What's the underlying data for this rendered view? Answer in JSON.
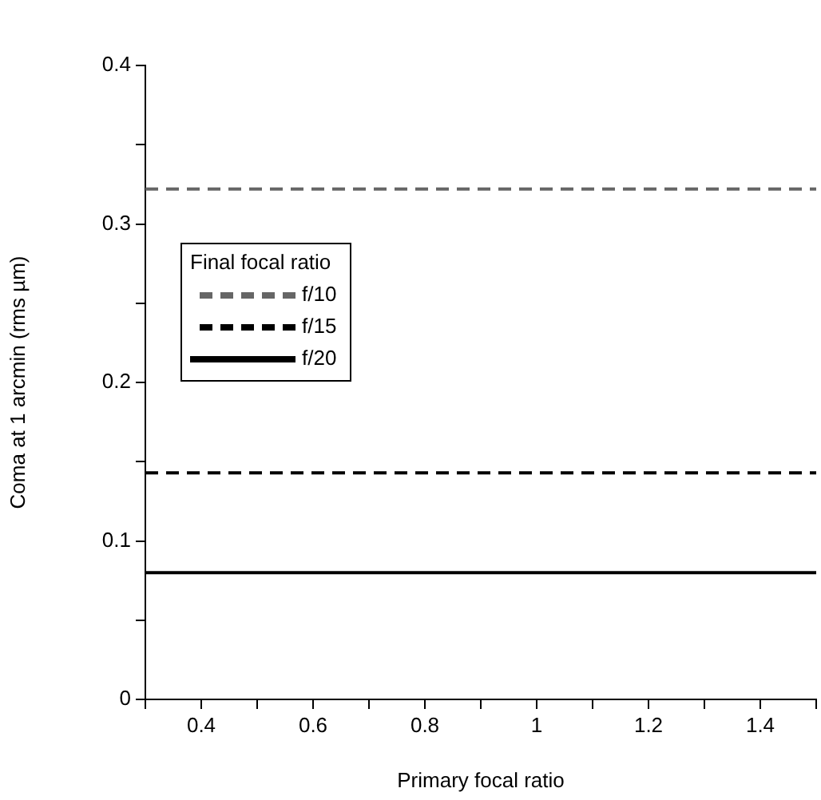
{
  "chart_data": {
    "type": "line",
    "xlabel": "Primary focal ratio",
    "ylabel": "Coma at 1 arcmin (rms µm)",
    "legend_title": "Final focal ratio",
    "legend": "left",
    "grid": false,
    "marker": "none",
    "x": [
      0.3,
      1.5
    ],
    "series": [
      {
        "name": "f/10",
        "color": "#666666",
        "line_style": "dashed",
        "values": [
          0.322,
          0.322
        ]
      },
      {
        "name": "f/15",
        "color": "#000000",
        "line_style": "dashed",
        "values": [
          0.143,
          0.143
        ]
      },
      {
        "name": "f/20",
        "color": "#000000",
        "line_style": "solid",
        "values": [
          0.08,
          0.08
        ]
      }
    ],
    "xlim": [
      0.3,
      1.5
    ],
    "xticks": [
      {
        "value": 0.3,
        "label": null
      },
      0.4,
      {
        "value": 0.5,
        "label": null
      },
      0.6,
      {
        "value": 0.7,
        "label": null
      },
      0.8,
      {
        "value": 0.9,
        "label": null
      },
      1,
      {
        "value": 1.1,
        "label": null
      },
      1.2,
      {
        "value": 1.3,
        "label": null
      },
      1.4,
      {
        "value": 1.5,
        "label": null
      }
    ],
    "ylim": [
      0,
      0.4
    ],
    "yticks": [
      0,
      {
        "value": 0.05,
        "label": null
      },
      0.1,
      {
        "value": 0.15,
        "label": null
      },
      0.2,
      {
        "value": 0.25,
        "label": null
      },
      0.3,
      {
        "value": 0.35,
        "label": null
      },
      0.4
    ]
  }
}
